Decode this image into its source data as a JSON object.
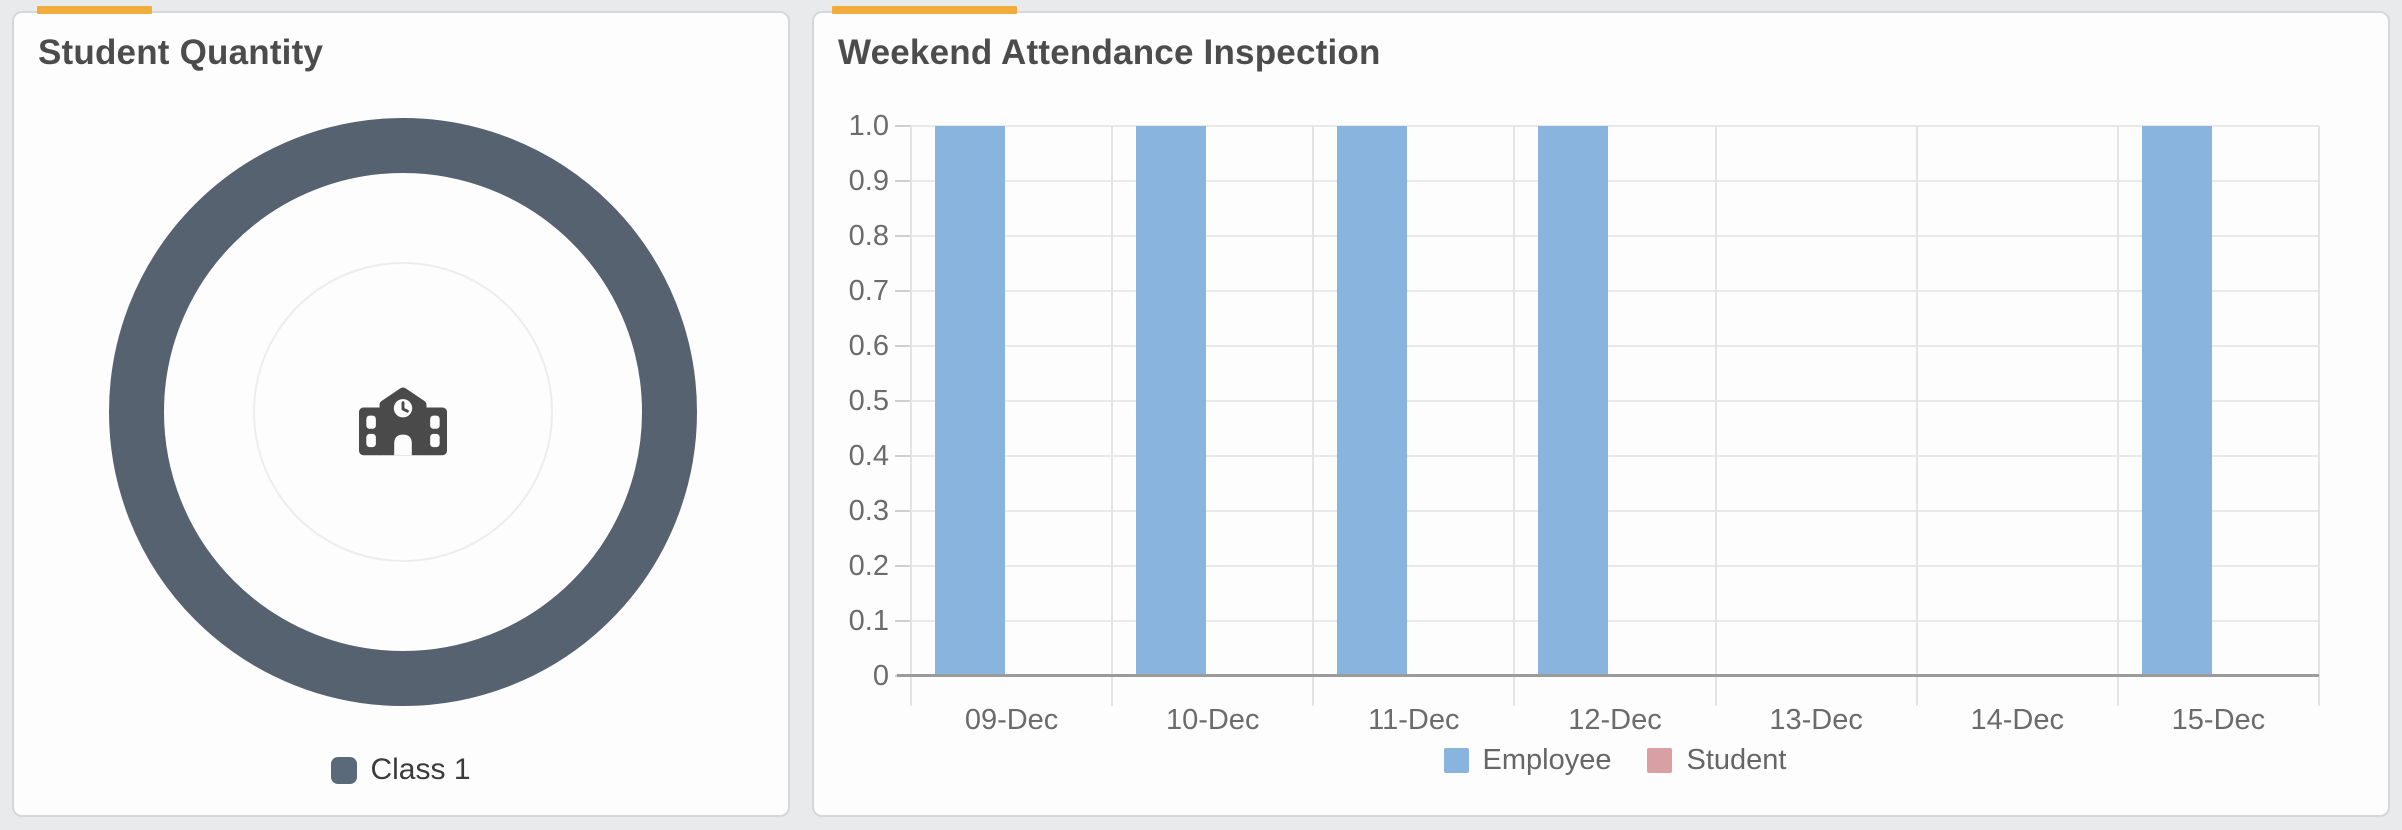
{
  "page": {
    "background": "#e9eaec",
    "accent_color": "#f0ad3c"
  },
  "cards": {
    "left": {
      "title": "Student Quantity"
    },
    "right": {
      "title": "Weekend Attendance Inspection"
    }
  },
  "icons": {
    "donut_center": "school-icon"
  },
  "chart_data": [
    {
      "type": "pie",
      "title": "Student Quantity",
      "series": [
        {
          "name": "Class 1",
          "value": 1,
          "color": "#56626f"
        }
      ],
      "legend": {
        "position": "bottom",
        "swatch_color": "#5a6a7a"
      },
      "center_icon": "school"
    },
    {
      "type": "bar",
      "title": "Weekend Attendance Inspection",
      "categories": [
        "09-Dec",
        "10-Dec",
        "11-Dec",
        "12-Dec",
        "13-Dec",
        "14-Dec",
        "15-Dec"
      ],
      "series": [
        {
          "name": "Employee",
          "color": "#89b4dd",
          "values": [
            1,
            1,
            1,
            1,
            0,
            0,
            1
          ]
        },
        {
          "name": "Student",
          "color": "#d9a0a4",
          "values": [
            0,
            0,
            0,
            0,
            0,
            0,
            0
          ]
        }
      ],
      "ylim": [
        0,
        1
      ],
      "ytick_labels": [
        "0",
        "0.1",
        "0.2",
        "0.3",
        "0.4",
        "0.5",
        "0.6",
        "0.7",
        "0.8",
        "0.9",
        "1.0"
      ],
      "grid": true,
      "legend_position": "bottom"
    }
  ]
}
